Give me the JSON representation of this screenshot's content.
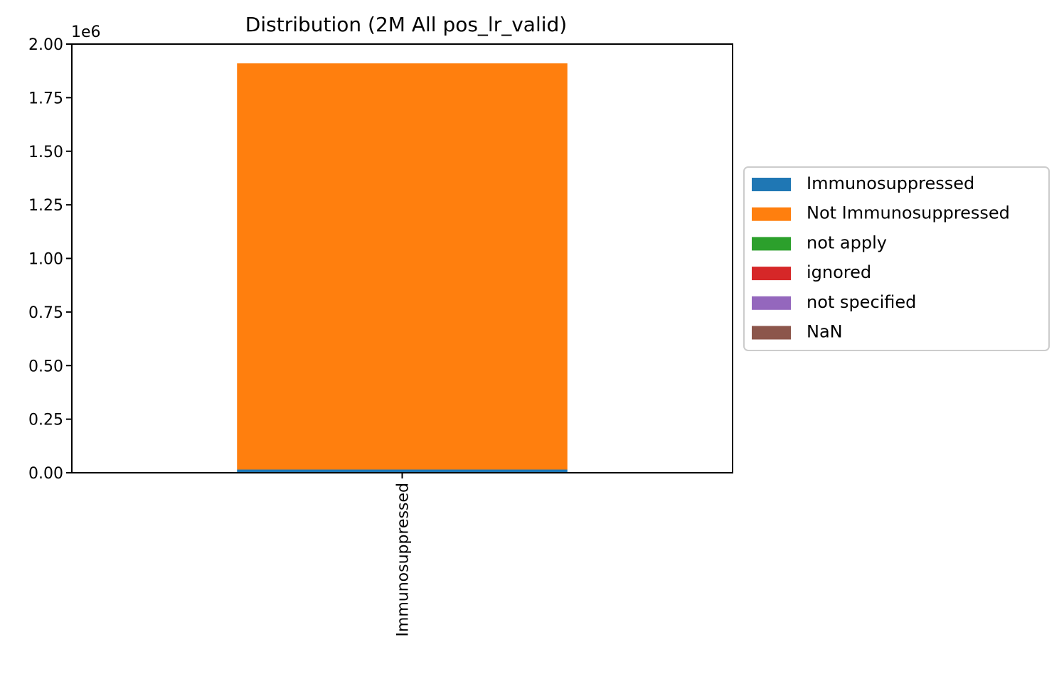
{
  "chart_data": {
    "type": "bar",
    "stacked": true,
    "title": "Distribution (2M All pos_lr_valid)",
    "xlabel": "",
    "ylabel": "",
    "y_scale_label": "1e6",
    "ylim": [
      0,
      2.0
    ],
    "y_ticks": [
      "0.00",
      "0.25",
      "0.50",
      "0.75",
      "1.00",
      "1.25",
      "1.50",
      "1.75",
      "2.00"
    ],
    "categories": [
      "Immunosuppressed"
    ],
    "series": [
      {
        "name": "Immunosuppressed",
        "color": "#1f77b4",
        "values": [
          0.015
        ]
      },
      {
        "name": "Not Immunosuppressed",
        "color": "#ff7f0e",
        "values": [
          1.895
        ]
      },
      {
        "name": "not apply",
        "color": "#2ca02c",
        "values": [
          0
        ]
      },
      {
        "name": "ignored",
        "color": "#d62728",
        "values": [
          0
        ]
      },
      {
        "name": "not specified",
        "color": "#9467bd",
        "values": [
          0
        ]
      },
      {
        "name": "NaN",
        "color": "#8c564b",
        "values": [
          0
        ]
      }
    ],
    "grid": false,
    "legend_placement": "outside-right"
  }
}
